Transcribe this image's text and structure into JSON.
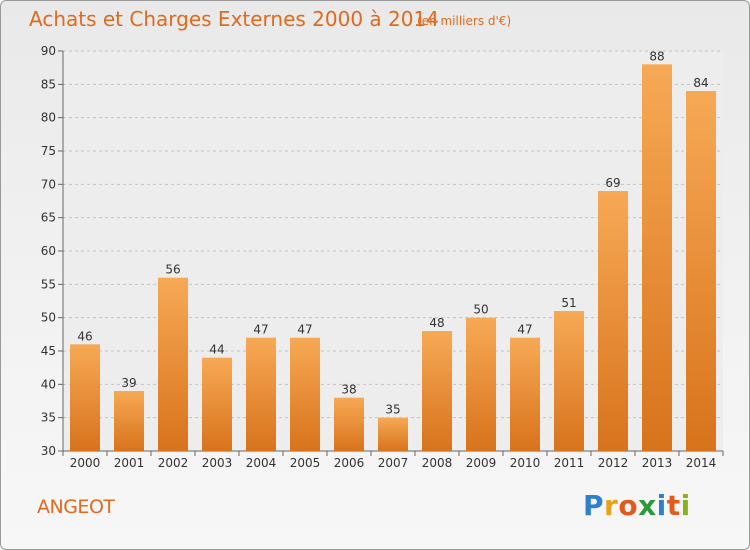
{
  "header": {
    "title": "Achats et Charges Externes 2000 à 2014",
    "unit": "(en milliers d'€)"
  },
  "footer": {
    "city": "ANGEOT",
    "brand": "Proxiti"
  },
  "colors": {
    "bar_light": "#f7a955",
    "bar_dark": "#d8731c",
    "accent": "#e06a1d"
  },
  "chart_data": {
    "type": "bar",
    "title": "Achats et Charges Externes 2000 à 2014",
    "categories": [
      "2000",
      "2001",
      "2002",
      "2003",
      "2004",
      "2005",
      "2006",
      "2007",
      "2008",
      "2009",
      "2010",
      "2011",
      "2012",
      "2013",
      "2014"
    ],
    "values": [
      46,
      39,
      56,
      44,
      47,
      47,
      38,
      35,
      48,
      50,
      47,
      51,
      69,
      88,
      84
    ],
    "ylim": [
      30,
      90
    ],
    "yticks": [
      30,
      35,
      40,
      45,
      50,
      55,
      60,
      65,
      70,
      75,
      80,
      85,
      90
    ],
    "grid": "horizontal-dashed"
  }
}
